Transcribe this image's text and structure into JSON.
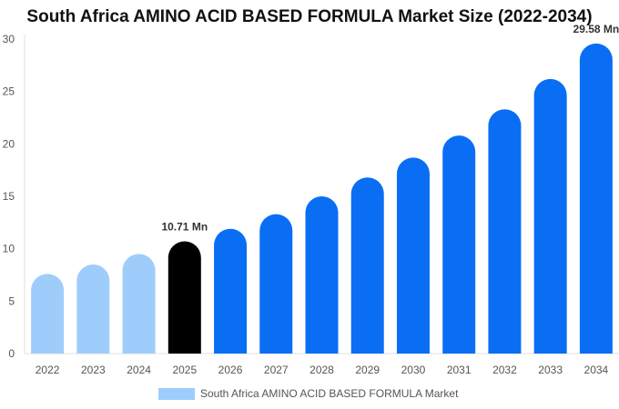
{
  "chart_data": {
    "type": "bar",
    "title": "South Africa AMINO ACID BASED FORMULA Market Size (2022-2034)",
    "xlabel": "",
    "ylabel": "",
    "categories": [
      "2022",
      "2023",
      "2024",
      "2025",
      "2026",
      "2027",
      "2028",
      "2029",
      "2030",
      "2031",
      "2032",
      "2033",
      "2034"
    ],
    "series": [
      {
        "name": "South Africa AMINO ACID BASED FORMULA Market",
        "values": [
          7.6,
          8.5,
          9.5,
          10.71,
          11.9,
          13.3,
          15.0,
          16.8,
          18.7,
          20.8,
          23.3,
          26.2,
          29.58
        ]
      }
    ],
    "ylim": [
      0,
      30
    ],
    "yticks": [
      0,
      5,
      10,
      15,
      20,
      25,
      30
    ],
    "data_labels": [
      {
        "category": "2025",
        "text": "10.71 Mn"
      },
      {
        "category": "2034",
        "text": "29.58 Mn"
      }
    ],
    "colors": {
      "historical": "#9fcdfb",
      "current": "#000000",
      "forecast": "#0a6ef5"
    },
    "historical_categories": [
      "2022",
      "2023",
      "2024"
    ],
    "current_category": "2025",
    "legend_position": "bottom",
    "grid": false
  }
}
